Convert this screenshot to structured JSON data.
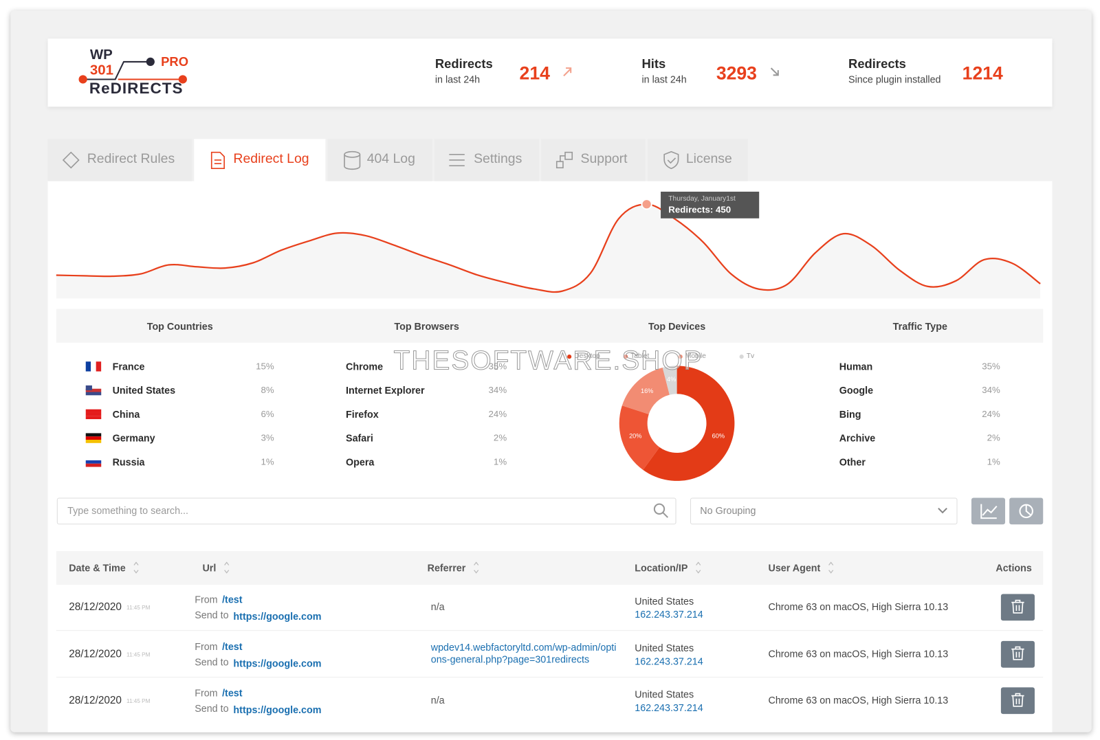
{
  "header": {
    "logo": {
      "wp": "WP",
      "num": "301",
      "pro": "PRO",
      "name": "ReDIRECTS"
    },
    "stats": [
      {
        "title": "Redirects",
        "subtitle": "in last 24h",
        "value": 214,
        "trend": "up"
      },
      {
        "title": "Hits",
        "subtitle": "in last 24h",
        "value": 3293,
        "trend": "down"
      },
      {
        "title": "Redirects",
        "subtitle": "Since plugin installed",
        "value": 1214
      }
    ]
  },
  "tabs": [
    {
      "label": "Redirect Rules"
    },
    {
      "label": "Redirect Log",
      "active": true
    },
    {
      "label": "404 Log"
    },
    {
      "label": "Settings"
    },
    {
      "label": "Support"
    },
    {
      "label": "License"
    }
  ],
  "chart_data": [
    {
      "type": "line",
      "color": "#e8401c",
      "ylim": [
        0,
        500
      ],
      "values": [
        111,
        108,
        106,
        117,
        160,
        151,
        145,
        170,
        230,
        275,
        312,
        300,
        255,
        205,
        160,
        111,
        75,
        45,
        35,
        120,
        380,
        450,
        380,
        270,
        117,
        44,
        67,
        218,
        309,
        252,
        134,
        57,
        84,
        185,
        168,
        70
      ],
      "tooltip": {
        "title": "Thursday, January1st",
        "text": "Redirects: 450"
      }
    },
    {
      "type": "pie",
      "donut": true,
      "title": "Top Devices",
      "categories": [
        "Desktop",
        "Tablet",
        "Mobile",
        "Tv"
      ],
      "values": [
        60,
        20,
        16,
        4
      ],
      "value_labels": [
        "60%",
        "20%",
        "16%",
        "4%"
      ],
      "colors": [
        "#e33b17",
        "#ee5535",
        "#f28c73",
        "#d8d8d8"
      ]
    }
  ],
  "stats_tables": [
    {
      "title": "Top Countries",
      "rows": [
        [
          "France",
          "15%"
        ],
        [
          "United States",
          "8%"
        ],
        [
          "China",
          "6%"
        ],
        [
          "Germany",
          "3%"
        ],
        [
          "Russia",
          "1%"
        ]
      ]
    },
    {
      "title": "Top Browsers",
      "rows": [
        [
          "Chrome",
          "35%"
        ],
        [
          "Internet Explorer",
          "34%"
        ],
        [
          "Firefox",
          "24%"
        ],
        [
          "Safari",
          "2%"
        ],
        [
          "Opera",
          "1%"
        ]
      ]
    },
    {
      "title": "Traffic Type",
      "rows": [
        [
          "Human",
          "35%"
        ],
        [
          "Google",
          "34%"
        ],
        [
          "Bing",
          "24%"
        ],
        [
          "Archive",
          "2%"
        ],
        [
          "Other",
          "1%"
        ]
      ]
    }
  ],
  "watermark": "THESOFTWARE.SHOP",
  "toolbar": {
    "search_placeholder": "Type something to search...",
    "grouping": "No Grouping"
  },
  "log_table": {
    "columns": [
      "Date & Time",
      "Url",
      "Referrer",
      "Location/IP",
      "User Agent",
      "Actions"
    ],
    "rows": [
      {
        "date": "28/12/2020",
        "time": "11:45 PM",
        "from_label": "From",
        "from": "/test",
        "to_label": "Send to",
        "to": "https://google.com",
        "referrer": "n/a",
        "location": "United States",
        "ip": "162.243.37.214",
        "agent": "Chrome 63 on macOS, High Sierra 10.13"
      },
      {
        "date": "28/12/2020",
        "time": "11:45 PM",
        "from_label": "From",
        "from": "/test",
        "to_label": "Send to",
        "to": "https://google.com",
        "referrer": "wpdev14.webfactoryltd.com/wp-admin/options-general.php?page=301redirects",
        "location": "United States",
        "ip": "162.243.37.214",
        "agent": "Chrome 63 on macOS, High Sierra 10.13"
      },
      {
        "date": "28/12/2020",
        "time": "11:45 PM",
        "from_label": "From",
        "from": "/test",
        "to_label": "Send to",
        "to": "https://google.com",
        "referrer": "n/a",
        "location": "United States",
        "ip": "162.243.37.214",
        "agent": "Chrome 63 on macOS, High Sierra 10.13"
      }
    ]
  }
}
